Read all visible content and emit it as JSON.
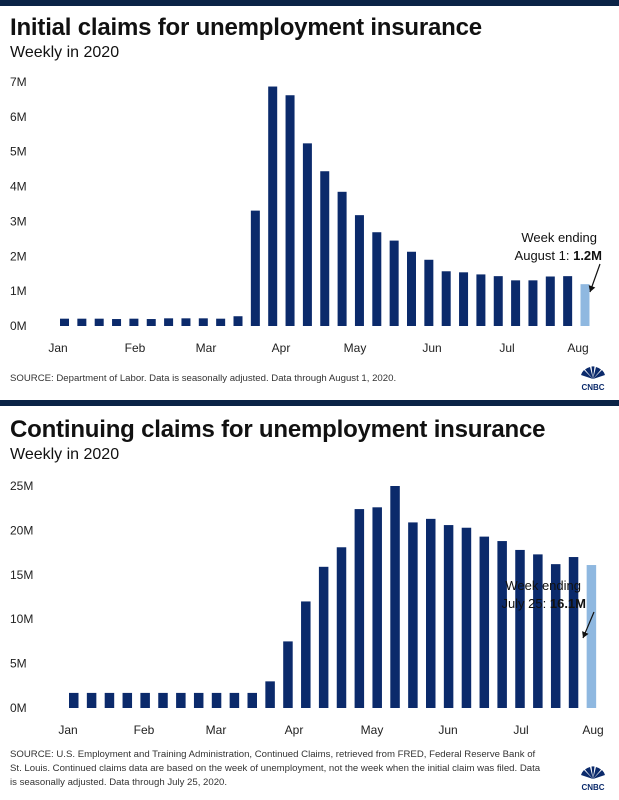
{
  "chart_data": [
    {
      "type": "bar",
      "title": "Initial claims for unemployment insurance",
      "subtitle": "Weekly in 2020",
      "x_ticks": [
        "Jan",
        "Feb",
        "Mar",
        "Apr",
        "May",
        "Jun",
        "Jul",
        "Aug"
      ],
      "y_ticks": [
        "0M",
        "1M",
        "2M",
        "3M",
        "4M",
        "5M",
        "6M",
        "7M"
      ],
      "ylim": [
        0,
        7
      ],
      "unit": "millions",
      "values": [
        0.21,
        0.21,
        0.21,
        0.2,
        0.21,
        0.2,
        0.22,
        0.22,
        0.22,
        0.21,
        0.28,
        3.31,
        6.87,
        6.62,
        5.24,
        4.44,
        3.85,
        3.18,
        2.69,
        2.45,
        2.13,
        1.9,
        1.57,
        1.54,
        1.48,
        1.43,
        1.31,
        1.31,
        1.42,
        1.43,
        1.2
      ],
      "highlight_last": true,
      "annotation": {
        "line1": "Week ending",
        "line2": "August 1: ",
        "value": "1.2M"
      },
      "source": "SOURCE: Department of Labor. Data is seasonally adjusted. Data through August 1, 2020."
    },
    {
      "type": "bar",
      "title": "Continuing claims for unemployment insurance",
      "subtitle": "Weekly in 2020",
      "x_ticks": [
        "Jan",
        "Feb",
        "Mar",
        "Apr",
        "May",
        "Jun",
        "Jul",
        "Aug"
      ],
      "y_ticks": [
        "0M",
        "5M",
        "10M",
        "15M",
        "20M",
        "25M"
      ],
      "ylim": [
        0,
        25
      ],
      "unit": "millions",
      "values": [
        1.7,
        1.7,
        1.7,
        1.7,
        1.7,
        1.7,
        1.7,
        1.7,
        1.7,
        1.7,
        1.7,
        3.0,
        7.5,
        12.0,
        15.9,
        18.1,
        22.4,
        22.6,
        25.0,
        20.9,
        21.3,
        20.6,
        20.3,
        19.3,
        18.8,
        17.8,
        17.3,
        16.2,
        17.0,
        16.1
      ],
      "highlight_last": true,
      "annotation": {
        "line1": "Week ending",
        "line2": "July 25: ",
        "value": "16.1M"
      },
      "source": "SOURCE: U.S. Employment and Training Administration, Continued Claims, retrieved from FRED, Federal Reserve Bank of St. Louis. Continued claims data are based on the week of unemployment, not the week when the initial claim was filed. Data is seasonally adjusted. Data through July 25, 2020."
    }
  ],
  "colors": {
    "bar": "#0b2a6b",
    "highlight": "#8fb8e0",
    "topbar": "#0b2346"
  },
  "logo": {
    "text": "CNBC",
    "icon": "cnbc-peacock-icon"
  }
}
